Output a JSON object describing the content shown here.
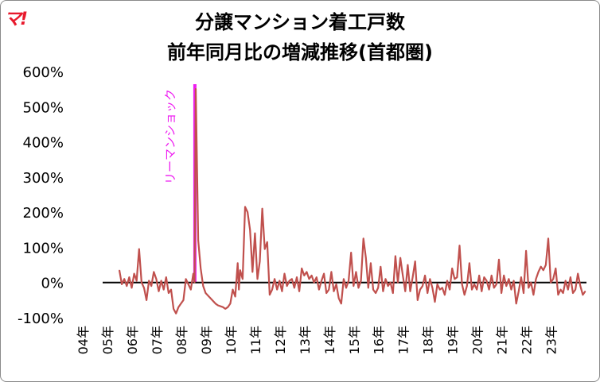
{
  "logo": "マ!",
  "chart_data": {
    "type": "line",
    "title": "分譲マンション着工戸数",
    "subtitle": "前年同月比の増減推移(首都圏)",
    "ylim": [
      -100,
      600
    ],
    "y_ticks": [
      "600%",
      "500%",
      "400%",
      "300%",
      "200%",
      "100%",
      "0%",
      "-100%"
    ],
    "y_tick_values": [
      600,
      500,
      400,
      300,
      200,
      100,
      0,
      -100
    ],
    "x_ticks": [
      "04年",
      "05年",
      "06年",
      "07年",
      "08年",
      "09年",
      "10年",
      "11年",
      "12年",
      "13年",
      "14年",
      "15年",
      "16年",
      "17年",
      "18年",
      "19年",
      "20年",
      "21年",
      "22年",
      "23年"
    ],
    "x_tick_years": [
      2004,
      2005,
      2006,
      2007,
      2008,
      2009,
      2010,
      2011,
      2012,
      2013,
      2014,
      2015,
      2016,
      2017,
      2018,
      2019,
      2020,
      2021,
      2022,
      2023
    ],
    "x_range_years": [
      2004,
      2023.95
    ],
    "grid": false,
    "series_color": "#c0504d",
    "annotation": {
      "label": "リーマンショック",
      "x_year": 2008.0,
      "color": "#ee1ef0"
    },
    "series": [
      {
        "values": [
          {
            "x": 2005.0,
            "y": 35
          },
          {
            "x": 2005.1,
            "y": -5
          },
          {
            "x": 2005.2,
            "y": 10
          },
          {
            "x": 2005.3,
            "y": -10
          },
          {
            "x": 2005.4,
            "y": 15
          },
          {
            "x": 2005.5,
            "y": -15
          },
          {
            "x": 2005.6,
            "y": 25
          },
          {
            "x": 2005.7,
            "y": 5
          },
          {
            "x": 2005.8,
            "y": 95
          },
          {
            "x": 2005.9,
            "y": 0
          },
          {
            "x": 2006.0,
            "y": -15
          },
          {
            "x": 2006.1,
            "y": -50
          },
          {
            "x": 2006.2,
            "y": 5
          },
          {
            "x": 2006.3,
            "y": -10
          },
          {
            "x": 2006.4,
            "y": 30
          },
          {
            "x": 2006.5,
            "y": 10
          },
          {
            "x": 2006.6,
            "y": -25
          },
          {
            "x": 2006.7,
            "y": 5
          },
          {
            "x": 2006.8,
            "y": -20
          },
          {
            "x": 2006.9,
            "y": 15
          },
          {
            "x": 2007.0,
            "y": -30
          },
          {
            "x": 2007.1,
            "y": -20
          },
          {
            "x": 2007.2,
            "y": -75
          },
          {
            "x": 2007.3,
            "y": -88
          },
          {
            "x": 2007.4,
            "y": -70
          },
          {
            "x": 2007.5,
            "y": -60
          },
          {
            "x": 2007.6,
            "y": -50
          },
          {
            "x": 2007.7,
            "y": 10
          },
          {
            "x": 2007.8,
            "y": -5
          },
          {
            "x": 2007.9,
            "y": -20
          },
          {
            "x": 2008.0,
            "y": 25
          },
          {
            "x": 2008.05,
            "y": 0
          },
          {
            "x": 2008.1,
            "y": 550
          },
          {
            "x": 2008.2,
            "y": 120
          },
          {
            "x": 2008.3,
            "y": 40
          },
          {
            "x": 2008.4,
            "y": -10
          },
          {
            "x": 2008.5,
            "y": -30
          },
          {
            "x": 2008.7,
            "y": -45
          },
          {
            "x": 2008.9,
            "y": -60
          },
          {
            "x": 2009.0,
            "y": -65
          },
          {
            "x": 2009.2,
            "y": -70
          },
          {
            "x": 2009.3,
            "y": -75
          },
          {
            "x": 2009.4,
            "y": -70
          },
          {
            "x": 2009.5,
            "y": -60
          },
          {
            "x": 2009.6,
            "y": -20
          },
          {
            "x": 2009.7,
            "y": -40
          },
          {
            "x": 2009.8,
            "y": 55
          },
          {
            "x": 2009.85,
            "y": -20
          },
          {
            "x": 2009.9,
            "y": 35
          },
          {
            "x": 2010.0,
            "y": 10
          },
          {
            "x": 2010.1,
            "y": 215
          },
          {
            "x": 2010.2,
            "y": 200
          },
          {
            "x": 2010.3,
            "y": 150
          },
          {
            "x": 2010.4,
            "y": 30
          },
          {
            "x": 2010.5,
            "y": 140
          },
          {
            "x": 2010.6,
            "y": 10
          },
          {
            "x": 2010.7,
            "y": 60
          },
          {
            "x": 2010.8,
            "y": 210
          },
          {
            "x": 2010.9,
            "y": 95
          },
          {
            "x": 2011.0,
            "y": 115
          },
          {
            "x": 2011.1,
            "y": -35
          },
          {
            "x": 2011.2,
            "y": -20
          },
          {
            "x": 2011.3,
            "y": 10
          },
          {
            "x": 2011.4,
            "y": -20
          },
          {
            "x": 2011.5,
            "y": 5
          },
          {
            "x": 2011.6,
            "y": -25
          },
          {
            "x": 2011.7,
            "y": 25
          },
          {
            "x": 2011.8,
            "y": -10
          },
          {
            "x": 2011.9,
            "y": 5
          },
          {
            "x": 2012.0,
            "y": 10
          },
          {
            "x": 2012.1,
            "y": -15
          },
          {
            "x": 2012.2,
            "y": 15
          },
          {
            "x": 2012.3,
            "y": -25
          },
          {
            "x": 2012.4,
            "y": 40
          },
          {
            "x": 2012.5,
            "y": 20
          },
          {
            "x": 2012.6,
            "y": 30
          },
          {
            "x": 2012.7,
            "y": 10
          },
          {
            "x": 2012.8,
            "y": 20
          },
          {
            "x": 2012.9,
            "y": 0
          },
          {
            "x": 2013.0,
            "y": 15
          },
          {
            "x": 2013.1,
            "y": -20
          },
          {
            "x": 2013.2,
            "y": 5
          },
          {
            "x": 2013.3,
            "y": 25
          },
          {
            "x": 2013.4,
            "y": -30
          },
          {
            "x": 2013.5,
            "y": -20
          },
          {
            "x": 2013.6,
            "y": 30
          },
          {
            "x": 2013.7,
            "y": -25
          },
          {
            "x": 2013.8,
            "y": -5
          },
          {
            "x": 2013.9,
            "y": -45
          },
          {
            "x": 2014.0,
            "y": -60
          },
          {
            "x": 2014.1,
            "y": 10
          },
          {
            "x": 2014.2,
            "y": -15
          },
          {
            "x": 2014.3,
            "y": 5
          },
          {
            "x": 2014.4,
            "y": 85
          },
          {
            "x": 2014.5,
            "y": -10
          },
          {
            "x": 2014.6,
            "y": 30
          },
          {
            "x": 2014.7,
            "y": -15
          },
          {
            "x": 2014.8,
            "y": 5
          },
          {
            "x": 2014.9,
            "y": 125
          },
          {
            "x": 2015.0,
            "y": 70
          },
          {
            "x": 2015.1,
            "y": -15
          },
          {
            "x": 2015.2,
            "y": 55
          },
          {
            "x": 2015.3,
            "y": -20
          },
          {
            "x": 2015.4,
            "y": -30
          },
          {
            "x": 2015.5,
            "y": -15
          },
          {
            "x": 2015.6,
            "y": 45
          },
          {
            "x": 2015.7,
            "y": -25
          },
          {
            "x": 2015.8,
            "y": 10
          },
          {
            "x": 2015.9,
            "y": -10
          },
          {
            "x": 2016.0,
            "y": 0
          },
          {
            "x": 2016.1,
            "y": -30
          },
          {
            "x": 2016.2,
            "y": 75
          },
          {
            "x": 2016.3,
            "y": 0
          },
          {
            "x": 2016.4,
            "y": 70
          },
          {
            "x": 2016.5,
            "y": 20
          },
          {
            "x": 2016.6,
            "y": -25
          },
          {
            "x": 2016.7,
            "y": 50
          },
          {
            "x": 2016.8,
            "y": -25
          },
          {
            "x": 2016.9,
            "y": 15
          },
          {
            "x": 2017.0,
            "y": 60
          },
          {
            "x": 2017.1,
            "y": -50
          },
          {
            "x": 2017.2,
            "y": -20
          },
          {
            "x": 2017.3,
            "y": -10
          },
          {
            "x": 2017.4,
            "y": 20
          },
          {
            "x": 2017.5,
            "y": -30
          },
          {
            "x": 2017.6,
            "y": 10
          },
          {
            "x": 2017.7,
            "y": -15
          },
          {
            "x": 2017.8,
            "y": -55
          },
          {
            "x": 2017.9,
            "y": -5
          },
          {
            "x": 2018.0,
            "y": -20
          },
          {
            "x": 2018.1,
            "y": -15
          },
          {
            "x": 2018.2,
            "y": -35
          },
          {
            "x": 2018.3,
            "y": 5
          },
          {
            "x": 2018.4,
            "y": -20
          },
          {
            "x": 2018.5,
            "y": 40
          },
          {
            "x": 2018.6,
            "y": 10
          },
          {
            "x": 2018.7,
            "y": 15
          },
          {
            "x": 2018.8,
            "y": 105
          },
          {
            "x": 2018.9,
            "y": -5
          },
          {
            "x": 2019.0,
            "y": -35
          },
          {
            "x": 2019.1,
            "y": -10
          },
          {
            "x": 2019.2,
            "y": 55
          },
          {
            "x": 2019.3,
            "y": -20
          },
          {
            "x": 2019.4,
            "y": -5
          },
          {
            "x": 2019.5,
            "y": -20
          },
          {
            "x": 2019.6,
            "y": 20
          },
          {
            "x": 2019.7,
            "y": -25
          },
          {
            "x": 2019.8,
            "y": 15
          },
          {
            "x": 2019.9,
            "y": 5
          },
          {
            "x": 2020.0,
            "y": -20
          },
          {
            "x": 2020.1,
            "y": 20
          },
          {
            "x": 2020.2,
            "y": -15
          },
          {
            "x": 2020.3,
            "y": -5
          },
          {
            "x": 2020.4,
            "y": 65
          },
          {
            "x": 2020.5,
            "y": -30
          },
          {
            "x": 2020.6,
            "y": 20
          },
          {
            "x": 2020.7,
            "y": -10
          },
          {
            "x": 2020.8,
            "y": 10
          },
          {
            "x": 2020.9,
            "y": -20
          },
          {
            "x": 2021.0,
            "y": 5
          },
          {
            "x": 2021.1,
            "y": -60
          },
          {
            "x": 2021.2,
            "y": -25
          },
          {
            "x": 2021.3,
            "y": 15
          },
          {
            "x": 2021.4,
            "y": -30
          },
          {
            "x": 2021.5,
            "y": 90
          },
          {
            "x": 2021.6,
            "y": -15
          },
          {
            "x": 2021.7,
            "y": 0
          },
          {
            "x": 2021.8,
            "y": -35
          },
          {
            "x": 2021.9,
            "y": 10
          },
          {
            "x": 2022.0,
            "y": 30
          },
          {
            "x": 2022.1,
            "y": 45
          },
          {
            "x": 2022.2,
            "y": 35
          },
          {
            "x": 2022.3,
            "y": 50
          },
          {
            "x": 2022.4,
            "y": 125
          },
          {
            "x": 2022.5,
            "y": 0
          },
          {
            "x": 2022.6,
            "y": 10
          },
          {
            "x": 2022.7,
            "y": 40
          },
          {
            "x": 2022.8,
            "y": -35
          },
          {
            "x": 2022.9,
            "y": -20
          },
          {
            "x": 2023.0,
            "y": -30
          },
          {
            "x": 2023.1,
            "y": 5
          },
          {
            "x": 2023.2,
            "y": -20
          },
          {
            "x": 2023.3,
            "y": 15
          },
          {
            "x": 2023.4,
            "y": -30
          },
          {
            "x": 2023.5,
            "y": -20
          },
          {
            "x": 2023.6,
            "y": 25
          },
          {
            "x": 2023.7,
            "y": -10
          },
          {
            "x": 2023.8,
            "y": -35
          },
          {
            "x": 2023.9,
            "y": -25
          }
        ]
      }
    ]
  }
}
